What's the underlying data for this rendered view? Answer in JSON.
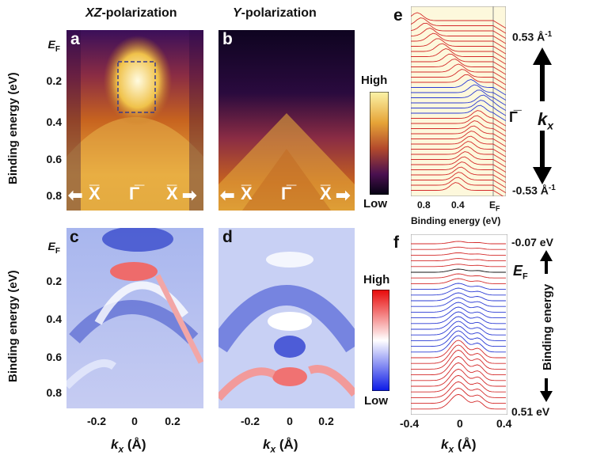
{
  "titles": {
    "a_b_left": "XZ-polarization",
    "left_prefix": "XZ",
    "left_suffix": "-polarization",
    "right_prefix": "Y",
    "right_suffix": "-polarization"
  },
  "panels": {
    "a": "a",
    "b": "b",
    "c": "c",
    "d": "d",
    "e": "e",
    "f": "f"
  },
  "y_axis": {
    "label": "Binding energy (eV)",
    "ticks": [
      "E",
      "0.2",
      "0.4",
      "0.6",
      "0.8"
    ],
    "ef_sub": "F"
  },
  "x_axis": {
    "label_k": "k",
    "label_sub": "x",
    "label_unit": " (Å)",
    "ticks": [
      "-0.2",
      "0",
      "0.2"
    ]
  },
  "symmetry": {
    "xbar": "X̅",
    "gamma": "Γ̅"
  },
  "colorbar_top": {
    "high": "High",
    "low": "Low"
  },
  "colorbar_bottom": {
    "high": "High",
    "low": "Low"
  },
  "panel_e": {
    "top_label": "0.53 Å",
    "top_sup": "-1",
    "bottom_label": "-0.53 Å",
    "bottom_sup": "-1",
    "gamma": "Γ̅",
    "k_label": "k",
    "k_sub": "x",
    "x_ticks": [
      "0.8",
      "0.4",
      "E"
    ],
    "ef_sub": "F",
    "x_label": "Binding energy (eV)"
  },
  "panel_f": {
    "top_label": "-0.07 eV",
    "bottom_label": "0.51 eV",
    "ef": "E",
    "ef_sub": "F",
    "side_label": "Binding energy",
    "x_ticks": [
      "-0.4",
      "0",
      "0.4"
    ]
  },
  "colors": {
    "red_curve": "#d42a2a",
    "blue_curve": "#2a3ad4"
  }
}
